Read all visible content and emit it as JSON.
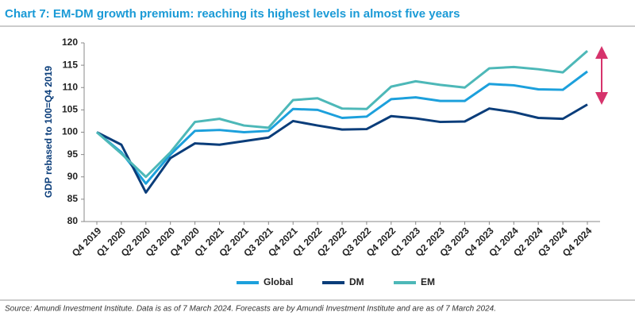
{
  "chart_data": {
    "type": "line",
    "title": "Chart 7: EM-DM growth premium: reaching its highest levels in almost five years",
    "y_label": "GDP rebased to 100=Q4 2019",
    "source": "Source: Amundi Investment Institute. Data is as of 7 March 2024. Forecasts are by Amundi Investment Institute and are as of 7 March 2024.",
    "categories": [
      "Q4 2019",
      "Q1 2020",
      "Q2 2020",
      "Q3 2020",
      "Q4 2020",
      "Q1 2021",
      "Q2 2021",
      "Q3 2021",
      "Q4 2021",
      "Q1 2022",
      "Q2 2022",
      "Q3 2022",
      "Q4 2022",
      "Q1 2023",
      "Q2 2023",
      "Q3 2023",
      "Q4 2023",
      "Q1 2024",
      "Q2 2024",
      "Q3 2024",
      "Q4 2024"
    ],
    "series": [
      {
        "name": "Global",
        "color": "#1ca0dc",
        "values": [
          100,
          95.5,
          88.5,
          95,
          100.3,
          100.5,
          100,
          100.3,
          105.2,
          105,
          103.2,
          103.5,
          107.4,
          107.8,
          107,
          107,
          110.8,
          110.5,
          109.6,
          109.5,
          113.6
        ]
      },
      {
        "name": "DM",
        "color": "#0a3d7a",
        "values": [
          100,
          97.2,
          86.5,
          94.2,
          97.5,
          97.2,
          98,
          98.8,
          102.5,
          101.5,
          100.6,
          100.7,
          103.6,
          103.1,
          102.3,
          102.4,
          105.3,
          104.5,
          103.2,
          103,
          106.2
        ]
      },
      {
        "name": "EM",
        "color": "#4db8b8",
        "values": [
          100,
          95.2,
          90,
          95.5,
          102.3,
          103,
          101.5,
          101,
          107.2,
          107.6,
          105.3,
          105.2,
          110.2,
          111.4,
          110.6,
          110,
          114.3,
          114.6,
          114.1,
          113.4,
          118.2
        ]
      }
    ],
    "ylim": [
      80,
      120
    ],
    "yticks": [
      80,
      85,
      90,
      95,
      100,
      105,
      110,
      115,
      120
    ]
  }
}
